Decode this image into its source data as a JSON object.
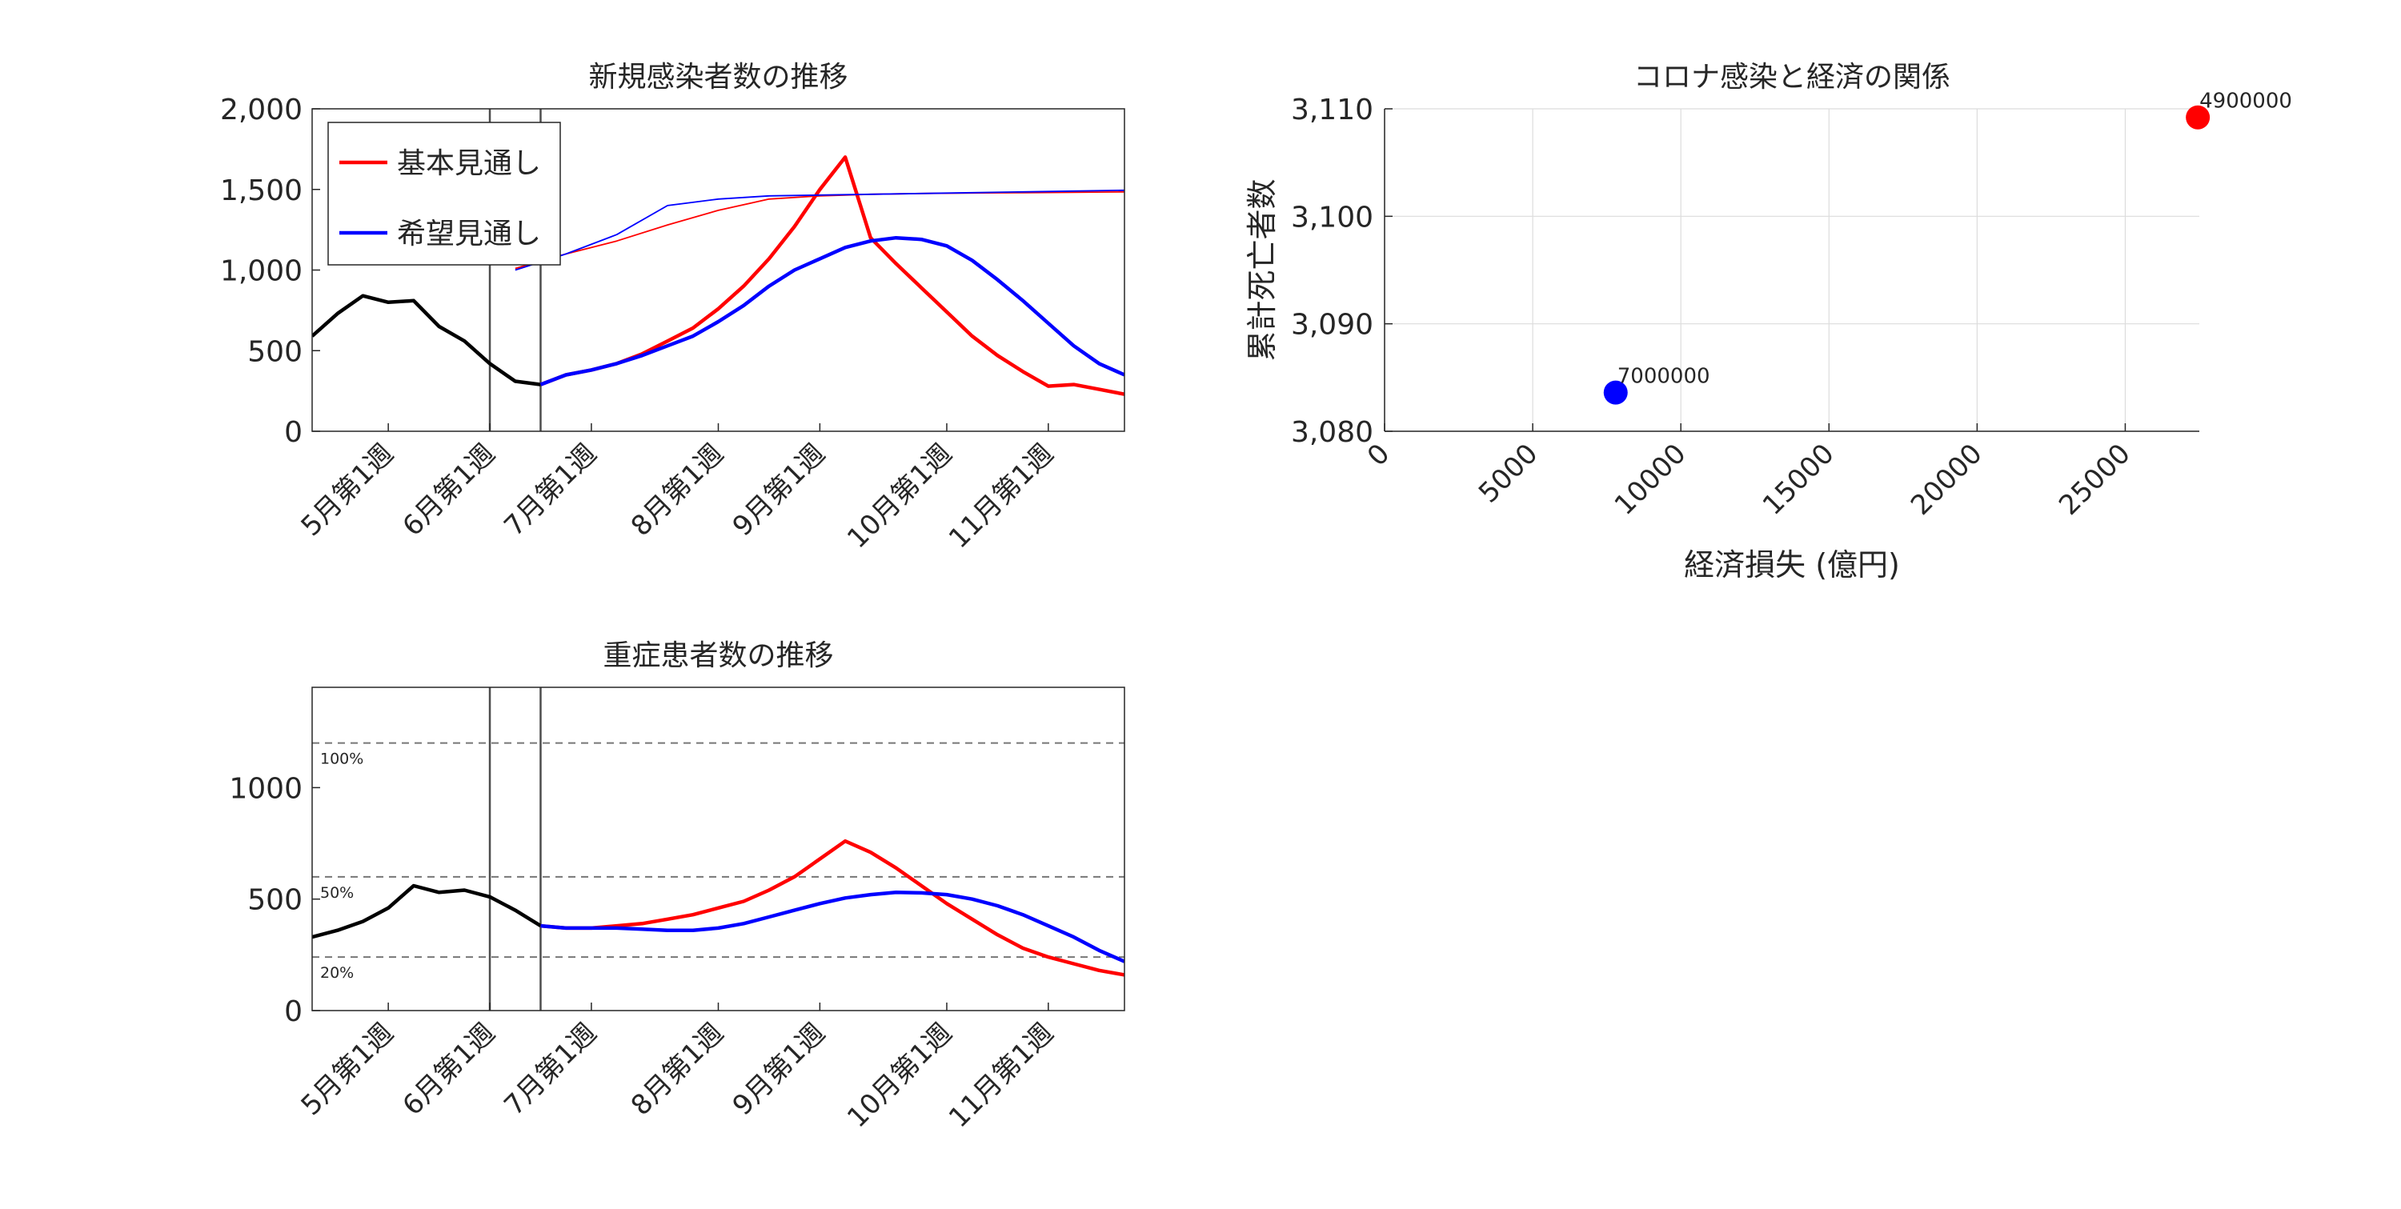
{
  "colors": {
    "base": "#ff0000",
    "hope": "#0000ff",
    "past": "#000000",
    "axis": "#262626",
    "grid": "#dcdcdc",
    "marker": "#555555"
  },
  "chart_data": [
    {
      "id": "new_cases",
      "type": "line",
      "title": "新規感染者数の推移",
      "xlabel": "",
      "ylabel": "",
      "x_range": [
        0,
        32
      ],
      "ylim": [
        0,
        2000
      ],
      "yticks": [
        0,
        500,
        1000,
        1500,
        2000
      ],
      "ytick_labels": [
        "0",
        "500",
        "1,000",
        "1,500",
        "2,000"
      ],
      "xticks": [
        3,
        7,
        11,
        16,
        20,
        25,
        29
      ],
      "xtick_labels": [
        "5月第1週",
        "6月第1週",
        "7月第1週",
        "8月第1週",
        "9月第1週",
        "10月第1週",
        "11月第1週"
      ],
      "vlines": [
        7,
        9
      ],
      "legend": {
        "placement": "top-left",
        "entries": [
          "基本見通し",
          "希望見通し"
        ]
      },
      "series": [
        {
          "name": "",
          "color": "#000000",
          "width": 2.2,
          "x": [
            0,
            1,
            2,
            3,
            4,
            5,
            6,
            7,
            8,
            9
          ],
          "values": [
            590,
            730,
            840,
            800,
            810,
            650,
            560,
            420,
            310,
            290
          ]
        },
        {
          "name": "基本見通し",
          "color": "#ff0000",
          "width": 2.2,
          "x": [
            9,
            10,
            11,
            12,
            13,
            14,
            15,
            16,
            17,
            18,
            19,
            20,
            21,
            22,
            23,
            24,
            25,
            26,
            27,
            28,
            29,
            30,
            31,
            32
          ],
          "values": [
            290,
            350,
            380,
            420,
            480,
            560,
            640,
            760,
            900,
            1070,
            1270,
            1500,
            1700,
            1200,
            1040,
            890,
            740,
            590,
            470,
            370,
            280,
            290,
            260,
            230
          ]
        },
        {
          "name": "希望見通し",
          "color": "#0000ff",
          "width": 2.2,
          "x": [
            9,
            10,
            11,
            12,
            13,
            14,
            15,
            16,
            17,
            18,
            19,
            20,
            21,
            22,
            23,
            24,
            25,
            26,
            27,
            28,
            29,
            30,
            31,
            32
          ],
          "values": [
            290,
            350,
            380,
            420,
            470,
            530,
            590,
            680,
            780,
            900,
            1000,
            1070,
            1140,
            1180,
            1200,
            1190,
            1150,
            1060,
            940,
            810,
            670,
            530,
            420,
            350
          ]
        },
        {
          "name": "",
          "color": "#ff0000",
          "width": 1,
          "x": [
            8,
            10,
            12,
            14,
            16,
            18,
            20,
            22,
            24,
            26,
            28,
            30,
            32
          ],
          "values": [
            1010,
            1100,
            1180,
            1280,
            1370,
            1440,
            1460,
            1470,
            1475,
            1478,
            1480,
            1482,
            1485
          ]
        },
        {
          "name": "",
          "color": "#0000ff",
          "width": 1,
          "x": [
            8,
            10,
            12,
            14,
            16,
            18,
            20,
            22,
            24,
            26,
            28,
            30,
            32
          ],
          "values": [
            1000,
            1100,
            1220,
            1400,
            1440,
            1460,
            1465,
            1470,
            1475,
            1480,
            1485,
            1490,
            1495
          ]
        }
      ]
    },
    {
      "id": "severe",
      "type": "line",
      "title": "重症患者数の推移",
      "xlabel": "",
      "ylabel": "",
      "x_range": [
        0,
        32
      ],
      "ylim": [
        0,
        1450
      ],
      "yticks": [
        0,
        500,
        1000
      ],
      "ytick_labels": [
        "0",
        "500",
        "1000"
      ],
      "xticks": [
        3,
        7,
        11,
        16,
        20,
        25,
        29
      ],
      "xtick_labels": [
        "5月第1週",
        "6月第1週",
        "7月第1週",
        "8月第1週",
        "9月第1週",
        "10月第1週",
        "11月第1週"
      ],
      "vlines": [
        7,
        9
      ],
      "hlines": [
        {
          "y": 1200,
          "label": "100%"
        },
        {
          "y": 600,
          "label": "50%"
        },
        {
          "y": 240,
          "label": "20%"
        }
      ],
      "series": [
        {
          "name": "",
          "color": "#000000",
          "width": 2.2,
          "x": [
            0,
            1,
            2,
            3,
            4,
            5,
            6,
            7,
            8,
            9
          ],
          "values": [
            330,
            360,
            400,
            460,
            560,
            530,
            540,
            510,
            450,
            380
          ]
        },
        {
          "name": "基本見通し",
          "color": "#ff0000",
          "width": 2.2,
          "x": [
            9,
            10,
            11,
            12,
            13,
            14,
            15,
            16,
            17,
            18,
            19,
            20,
            21,
            22,
            23,
            24,
            25,
            26,
            27,
            28,
            29,
            30,
            31,
            32
          ],
          "values": [
            380,
            370,
            370,
            380,
            390,
            410,
            430,
            460,
            490,
            540,
            600,
            680,
            760,
            710,
            640,
            560,
            480,
            410,
            340,
            280,
            240,
            210,
            180,
            160
          ]
        },
        {
          "name": "希望見通し",
          "color": "#0000ff",
          "width": 2.2,
          "x": [
            9,
            10,
            11,
            12,
            13,
            14,
            15,
            16,
            17,
            18,
            19,
            20,
            21,
            22,
            23,
            24,
            25,
            26,
            27,
            28,
            29,
            30,
            31,
            32
          ],
          "values": [
            380,
            370,
            370,
            370,
            365,
            360,
            360,
            370,
            390,
            420,
            450,
            480,
            505,
            520,
            530,
            528,
            520,
            500,
            470,
            430,
            380,
            330,
            270,
            220
          ]
        }
      ]
    },
    {
      "id": "scatter",
      "type": "scatter",
      "title": "コロナ感染と経済の関係",
      "xlabel": "経済損失 (億円)",
      "ylabel": "累計死亡者数",
      "xlim": [
        0,
        27500
      ],
      "ylim": [
        3080,
        3110
      ],
      "xticks": [
        0,
        5000,
        10000,
        15000,
        20000,
        25000
      ],
      "xtick_labels": [
        "0",
        "5000",
        "10000",
        "15000",
        "20000",
        "25000"
      ],
      "yticks": [
        3080,
        3090,
        3100,
        3110
      ],
      "ytick_labels": [
        "3,080",
        "3,090",
        "3,100",
        "3,110"
      ],
      "grid": true,
      "points": [
        {
          "x": 7800,
          "y": 3083.6,
          "label": "7000000",
          "color": "#0000ff"
        },
        {
          "x": 27450,
          "y": 3109.2,
          "label": "4900000",
          "color": "#ff0000"
        }
      ]
    }
  ]
}
